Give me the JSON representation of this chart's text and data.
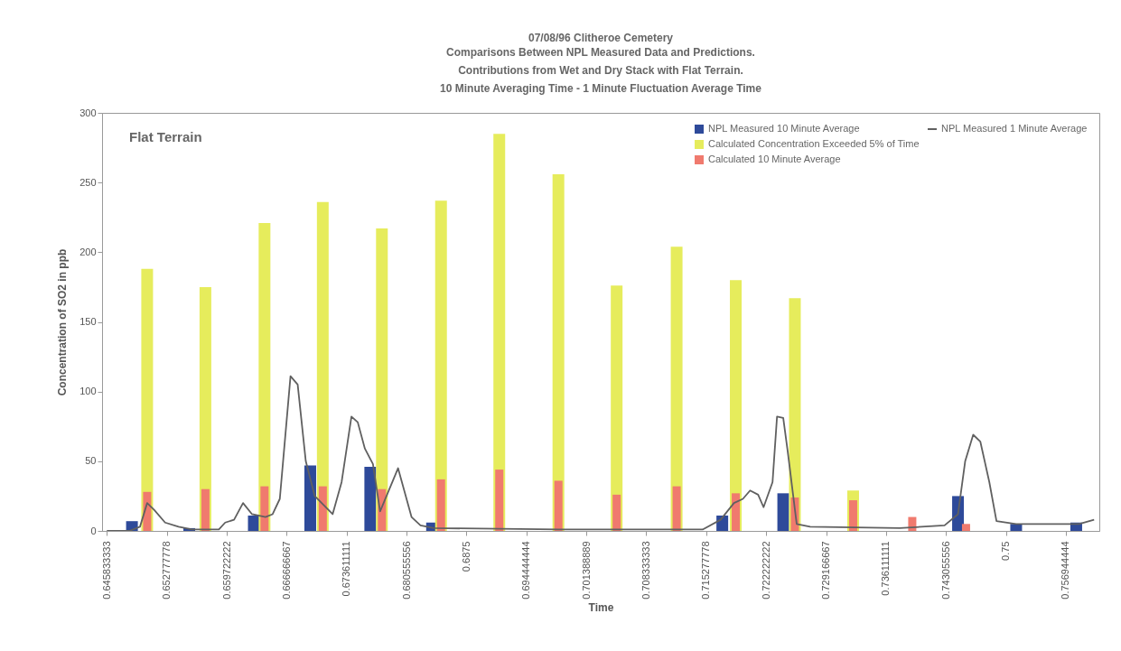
{
  "chart_data": {
    "type": "bar",
    "title": "07/08/96 Clitheroe Cemetery",
    "subtitle": "Comparisons Between NPL Measured Data and Predictions.\nContributions from Wet and Dry Stack with Flat Terrain.\n10 Minute Averaging Time - 1 Minute Fluctuation Average Time",
    "xlabel": "Time",
    "ylabel": "Concentration of SO2 in ppb",
    "annotations": [
      "Flat Terrain"
    ],
    "xlim": [
      0.6458,
      0.7603
    ],
    "xticks": [
      0.645833333,
      0.652777778,
      0.659722222,
      0.666666667,
      0.673611111,
      0.680555556,
      0.6875,
      0.694444444,
      0.701388889,
      0.708333333,
      0.715277778,
      0.722222222,
      0.729166667,
      0.736111111,
      0.743055556,
      0.75,
      0.756944444
    ],
    "ylim": [
      0,
      300
    ],
    "yticks": [
      0,
      50,
      100,
      150,
      200,
      250,
      300
    ],
    "grid": false,
    "legend": "top right",
    "series": [
      {
        "name": "NPL Measured 10 Minute Average",
        "color": "#2e4a9a",
        "x": [
          0.64874,
          0.65538,
          0.66286,
          0.6694,
          0.67635,
          0.68351,
          0.71714,
          0.7242,
          0.74445,
          0.75119,
          0.75815
        ],
        "values": [
          7,
          2,
          11,
          47,
          46,
          6,
          11,
          27,
          25,
          5,
          6
        ]
      },
      {
        "name": "Calculated Concentration Exceeded 5% of Time",
        "color": "#e6ec5c",
        "x": [
          0.6505,
          0.65725,
          0.6641,
          0.67085,
          0.6777,
          0.68455,
          0.6913,
          0.69815,
          0.7049,
          0.71185,
          0.7187,
          0.72555,
          0.7323
        ],
        "values": [
          188,
          175,
          221,
          236,
          217,
          237,
          285,
          256,
          176,
          204,
          180,
          167,
          29
        ]
      },
      {
        "name": "Calculated 10 Minute Average",
        "color": "#f07a6e",
        "x": [
          0.6505,
          0.65725,
          0.6641,
          0.67085,
          0.6777,
          0.68455,
          0.6913,
          0.69815,
          0.7049,
          0.71185,
          0.7187,
          0.72555,
          0.7323,
          0.73915,
          0.74538
        ],
        "values": [
          28,
          30,
          32,
          32,
          30,
          37,
          44,
          36,
          26,
          32,
          27,
          24,
          22,
          10,
          5
        ]
      },
      {
        "name": "NPL Measured 1 Minute Average",
        "color": "#606060",
        "type": "line",
        "x": [
          0.64583,
          0.64843,
          0.64967,
          0.6505,
          0.65133,
          0.65258,
          0.65414,
          0.6557,
          0.65881,
          0.65954,
          0.66057,
          0.66161,
          0.66265,
          0.66421,
          0.66504,
          0.66587,
          0.66711,
          0.66794,
          0.66888,
          0.66992,
          0.67199,
          0.67303,
          0.67417,
          0.6749,
          0.67573,
          0.67666,
          0.67749,
          0.67957,
          0.68113,
          0.68217,
          0.68372,
          0.69825,
          0.71486,
          0.71694,
          0.71849,
          0.71953,
          0.72036,
          0.72129,
          0.72192,
          0.72296,
          0.72348,
          0.7242,
          0.72472,
          0.72576,
          0.72732,
          0.7377,
          0.74289,
          0.74445,
          0.74528,
          0.74621,
          0.74704,
          0.74808,
          0.74891,
          0.75119,
          0.75846,
          0.76022
        ],
        "values": [
          0,
          0,
          3,
          20,
          15,
          6,
          3,
          1,
          1,
          6,
          8,
          20,
          12,
          10,
          12,
          23,
          111,
          105,
          50,
          25,
          12,
          35,
          82,
          78,
          59,
          48,
          14,
          45,
          10,
          4,
          2,
          1,
          1,
          8,
          20,
          23,
          29,
          26,
          17,
          35,
          82,
          81,
          57,
          5,
          3,
          2,
          4,
          12,
          50,
          69,
          64,
          35,
          7,
          5,
          5,
          8
        ]
      }
    ]
  }
}
